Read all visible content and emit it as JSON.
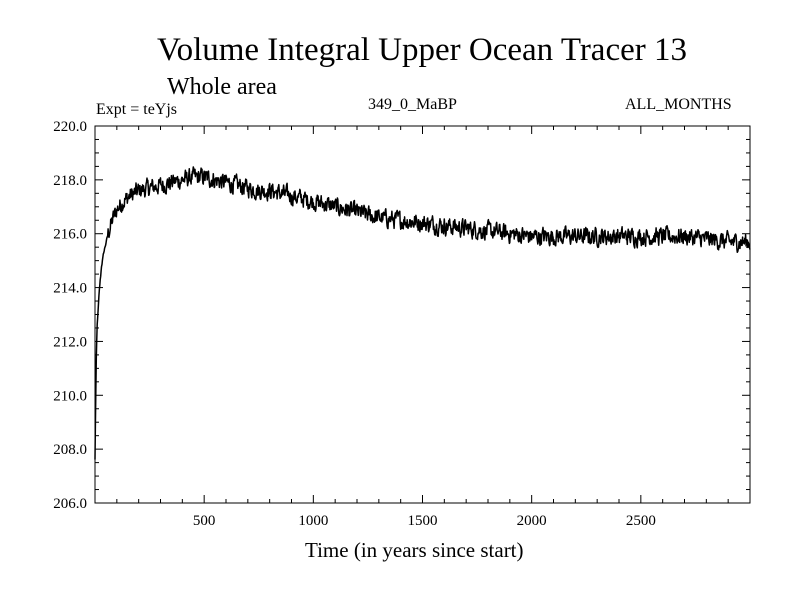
{
  "chart_data": {
    "type": "line",
    "title": "Volume Integral Upper Ocean Tracer 13",
    "subtitle": "Whole area",
    "experiment": "Expt = teYjs",
    "run": "349_0_MaBP",
    "period": "ALL_MONTHS",
    "xlabel": "Time (in years since start)",
    "ylabel": "",
    "xlim": [
      0,
      3000
    ],
    "ylim": [
      206.0,
      220.0
    ],
    "x_ticks": [
      500,
      1000,
      1500,
      2000,
      2500
    ],
    "x_tick_labels": [
      "500",
      "1000",
      "1500",
      "2000",
      "2500"
    ],
    "y_ticks": [
      206,
      208,
      210,
      212,
      214,
      216,
      218,
      220
    ],
    "y_tick_labels": [
      "206.0",
      "208.0",
      "210.0",
      "212.0",
      "214.0",
      "216.0",
      "218.0",
      "220.0"
    ],
    "grid": false,
    "series": [
      {
        "name": "Tracer 13",
        "x": [
          0,
          5,
          10,
          20,
          30,
          40,
          60,
          80,
          100,
          130,
          160,
          200,
          250,
          300,
          350,
          400,
          450,
          500,
          550,
          600,
          650,
          700,
          750,
          800,
          850,
          900,
          950,
          1000,
          1100,
          1200,
          1300,
          1400,
          1500,
          1600,
          1700,
          1800,
          1900,
          2000,
          2100,
          2200,
          2300,
          2400,
          2500,
          2600,
          2700,
          2800,
          2900,
          3000
        ],
        "values": [
          207.6,
          211.0,
          212.6,
          213.9,
          214.8,
          215.3,
          216.0,
          216.5,
          216.9,
          217.2,
          217.4,
          217.6,
          217.7,
          217.8,
          217.9,
          218.0,
          218.1,
          218.1,
          218.0,
          217.9,
          217.8,
          217.7,
          217.6,
          217.6,
          217.5,
          217.4,
          217.3,
          217.2,
          217.0,
          216.8,
          216.6,
          216.5,
          216.4,
          216.3,
          216.2,
          216.1,
          216.0,
          215.9,
          215.9,
          215.9,
          215.9,
          215.9,
          215.9,
          215.9,
          215.9,
          215.8,
          215.7,
          215.7
        ]
      }
    ]
  }
}
